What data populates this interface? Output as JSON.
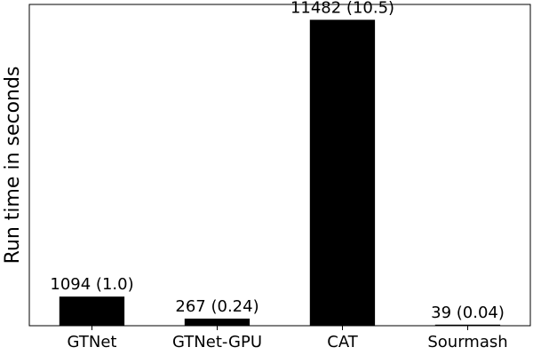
{
  "chart_data": {
    "type": "bar",
    "categories": [
      "GTNet",
      "GTNet-GPU",
      "CAT",
      "Sourmash"
    ],
    "values": [
      1094,
      267,
      11482,
      39
    ],
    "data_labels": [
      "1094 (1.0)",
      "267 (0.24)",
      "11482 (10.5)",
      "39 (0.04)"
    ],
    "title": "",
    "xlabel": "",
    "ylabel": "Run time in seconds",
    "ylim": [
      0,
      12057
    ],
    "y_ticks_visible": false,
    "grid": false,
    "bar_color": "#000000"
  }
}
